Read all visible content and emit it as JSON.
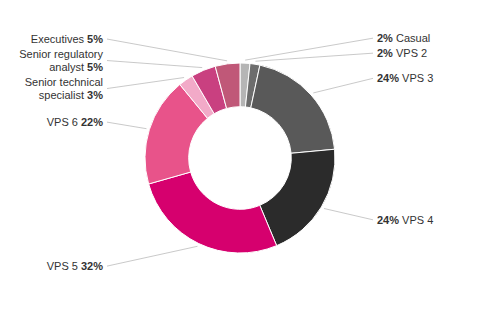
{
  "chart_data": {
    "type": "donut",
    "categories": [
      "Casual",
      "VPS 2",
      "VPS 3",
      "VPS 4",
      "VPS 5",
      "VPS 6",
      "Senior technical\nspecialist",
      "Senior regulatory\nanalyst",
      "Executives"
    ],
    "values": [
      2,
      2,
      24,
      24,
      32,
      22,
      3,
      5,
      5
    ],
    "value_labels": [
      "2%",
      "2%",
      "24%",
      "24%",
      "32%",
      "22%",
      "3%",
      "5%",
      "5%"
    ],
    "colors": [
      "#b5b5b5",
      "#6d6d6d",
      "#595959",
      "#2b2b2b",
      "#d6006e",
      "#e8538a",
      "#f2aac8",
      "#c94080",
      "#c05878"
    ],
    "data_labels": true
  }
}
